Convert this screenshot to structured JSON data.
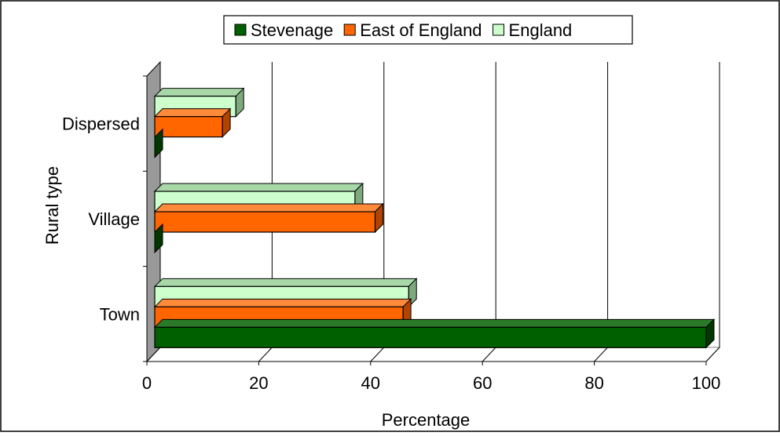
{
  "chart_data": {
    "type": "bar",
    "orientation": "horizontal",
    "three_d": true,
    "categories": [
      "Town",
      "Village",
      "Dispersed"
    ],
    "series": [
      {
        "name": "Stevenage",
        "values": [
          100,
          0,
          0
        ],
        "color": "#006000",
        "top_color": "#2a7a2a",
        "side_color": "#003800"
      },
      {
        "name": "East of England",
        "values": [
          45.8,
          40.8,
          13.5
        ],
        "color": "#ff6600",
        "top_color": "#ff8a3a",
        "side_color": "#b34400"
      },
      {
        "name": "England",
        "values": [
          46.8,
          37.2,
          15.9
        ],
        "color": "#ccffcc",
        "top_color": "#a8d8a8",
        "side_color": "#7fa87f"
      }
    ],
    "xlabel": "Percentage",
    "ylabel": "Rural type",
    "xlim": [
      0,
      100
    ],
    "xticks": [
      "0",
      "20",
      "40",
      "60",
      "80",
      "100"
    ],
    "grid": true,
    "legend": "top"
  }
}
